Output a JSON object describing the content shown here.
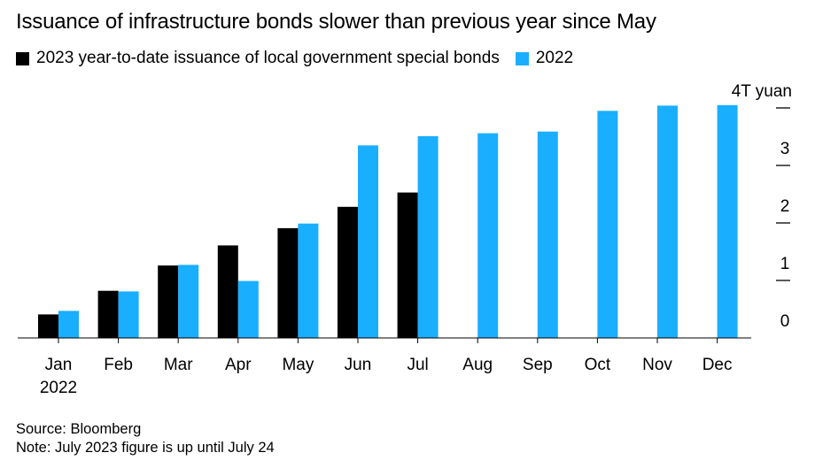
{
  "title": "Issuance of infrastructure bonds slower than previous year since May",
  "legend": [
    {
      "label": "2023 year-to-date issuance of local government special bonds",
      "color": "#000000"
    },
    {
      "label": "2022",
      "color": "#1aaeff"
    }
  ],
  "footer": {
    "source": "Source: Bloomberg",
    "note": "Note: July 2023 figure is up until July 24"
  },
  "chart_data": {
    "type": "bar",
    "categories": [
      "Jan",
      "Feb",
      "Mar",
      "Apr",
      "May",
      "Jun",
      "Jul",
      "Aug",
      "Sep",
      "Oct",
      "Nov",
      "Dec"
    ],
    "first_category_sublabel": "2022",
    "series": [
      {
        "name": "2023 year-to-date issuance of local government special bonds",
        "color": "#000000",
        "values": [
          0.41,
          0.82,
          1.26,
          1.61,
          1.91,
          2.28,
          2.53,
          null,
          null,
          null,
          null,
          null
        ]
      },
      {
        "name": "2022",
        "color": "#1aaeff",
        "values": [
          0.47,
          0.81,
          1.27,
          0.99,
          1.99,
          3.35,
          3.51,
          3.56,
          3.59,
          3.95,
          4.04,
          4.05
        ]
      }
    ],
    "y_ticks": [
      "0",
      "1",
      "2",
      "3",
      "4T yuan"
    ],
    "ylim": [
      0,
      4
    ],
    "axis_side": "right",
    "grid": false
  }
}
